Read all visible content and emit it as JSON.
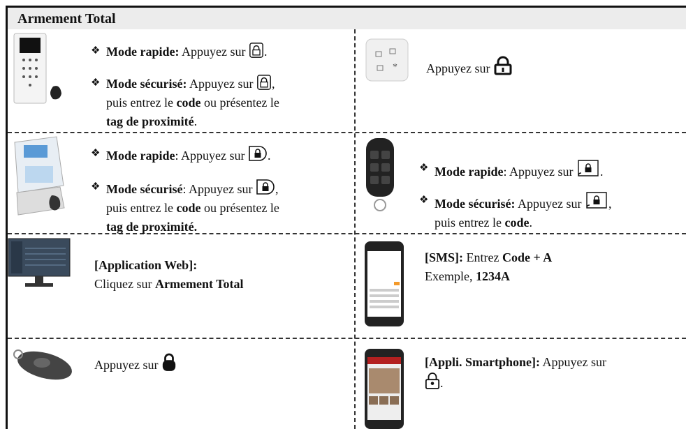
{
  "header": {
    "title": "Armement Total"
  },
  "bullet": "❖",
  "rows": [
    {
      "left": {
        "items": [
          [
            "Mode rapide:",
            " Appuyez sur ",
            "."
          ],
          [
            "Mode sécurisé:",
            " Appuyez sur ",
            ",",
            "puis entrez le ",
            "code",
            " ou présentez le",
            "tag de proximité",
            "."
          ]
        ]
      },
      "right": {
        "items": [
          [
            "Appuyez sur"
          ]
        ]
      }
    },
    {
      "left": {
        "items": [
          [
            "Mode rapide",
            ": Appuyez sur ",
            "."
          ],
          [
            "Mode sécurisé",
            ": Appuyez sur ",
            ",",
            "puis entrez le ",
            "code",
            " ou présentez le",
            "tag de proximité."
          ]
        ]
      },
      "right": {
        "items": [
          [
            "Mode rapide",
            ": Appuyez sur ",
            "."
          ],
          [
            "Mode sécurisé:",
            " Appuyez sur ",
            ",",
            "puis entrez le ",
            "code",
            "."
          ]
        ]
      }
    },
    {
      "left": {
        "items": [
          [
            "[Application Web]:"
          ],
          [
            "Cliquez sur ",
            "Armement Total"
          ]
        ]
      },
      "right": {
        "items": [
          [
            "[SMS]:",
            " Entrez ",
            "Code + A"
          ],
          [
            "Exemple, ",
            "1234A"
          ]
        ]
      }
    },
    {
      "left": {
        "items": [
          [
            "Appuyez sur"
          ]
        ]
      },
      "right": {
        "items": [
          [
            "[Appli. Smartphone]:",
            " Appuyez sur",
            "."
          ]
        ]
      }
    }
  ]
}
